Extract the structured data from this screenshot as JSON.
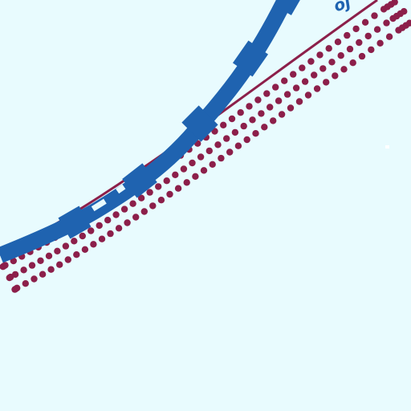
{
  "map": {
    "background_color": "#e8fbfe",
    "features": [
      {
        "name": "boundary-line",
        "kind": "line",
        "color": "#8c1f4a"
      },
      {
        "name": "boundary-dot-band",
        "kind": "dotted-band",
        "color": "#8c1f4a"
      },
      {
        "name": "blue-route",
        "kind": "thick-line-with-blocks",
        "color": "#1f63b0"
      }
    ],
    "corner_label": {
      "text": "oj",
      "color": "#1f63b0"
    }
  }
}
